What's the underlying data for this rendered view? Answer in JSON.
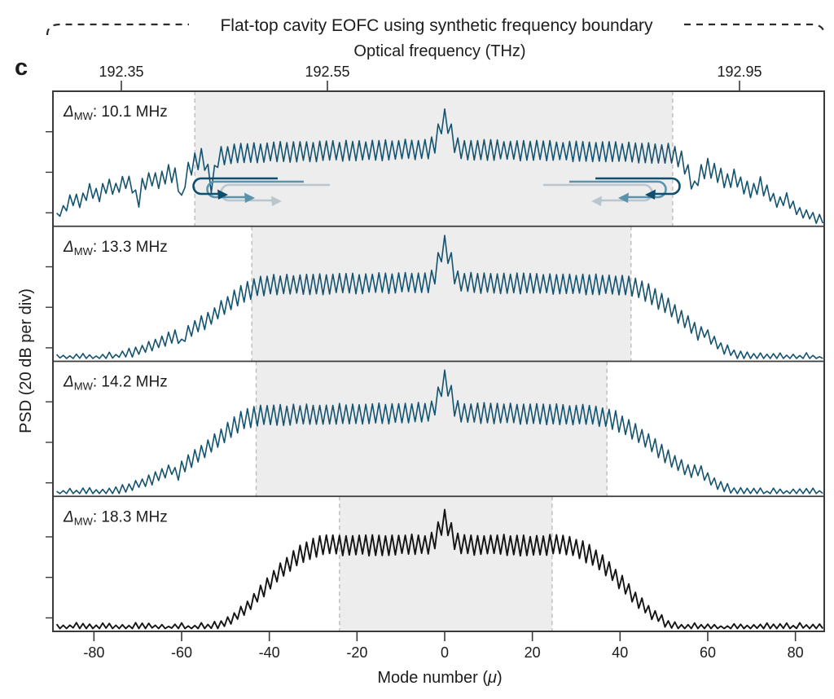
{
  "title": "Flat-top cavity EOFC using synthetic frequency boundary",
  "panel_letter": "c",
  "top_axis": {
    "label": "Optical frequency (THz)",
    "ticks": [
      {
        "label": "192.35",
        "mu": -73.75
      },
      {
        "label": "192.55",
        "mu": -26.75
      },
      {
        "label": "192.95",
        "mu": 67.25
      }
    ]
  },
  "bottom_axis": {
    "label_parts": {
      "prefix": "Mode number (",
      "symbol": "μ",
      "suffix": ")"
    },
    "ticks": [
      -80,
      -60,
      -40,
      -20,
      0,
      20,
      40,
      60,
      80
    ]
  },
  "y_axis": {
    "label": "PSD (20 dB per div)",
    "db_per_division": 20
  },
  "colors": {
    "spectrum_teal": "#14536e",
    "spectrum_black": "#141414",
    "shade": "#ededee",
    "shade_border_dash": "#bcbcbc",
    "frame": "#3a3a3a",
    "arrow_dark": "#0f4e6e",
    "arrow_mid": "#5b93ad",
    "arrow_light": "#b9c6cd"
  },
  "chart_data": {
    "type": "line",
    "x_axis": "Mode number (mu)",
    "x_range": [
      -89,
      87
    ],
    "y_axis": "PSD, 20 dB per division (relative level 0..1 of flat-top)",
    "optical_frequency_ticks_thz": [
      192.35,
      192.55,
      192.95
    ],
    "series": [
      {
        "name": "Delta_MW 10.1 MHz",
        "label": {
          "symbol": "Δ",
          "subscript": "MW",
          "sep": ": ",
          "value": "10.1 MHz"
        },
        "color_key": "spectrum_teal",
        "flat_region_mu": [
          -57,
          52
        ],
        "center_spike_mu": 0,
        "has_circulation_arrows": true,
        "envelope": [
          [
            -89,
            0.08
          ],
          [
            -87,
            0.2
          ],
          [
            -85,
            0.34
          ],
          [
            -83,
            0.3
          ],
          [
            -81,
            0.44
          ],
          [
            -79,
            0.38
          ],
          [
            -77,
            0.52
          ],
          [
            -75,
            0.46
          ],
          [
            -73,
            0.57
          ],
          [
            -71,
            0.5
          ],
          [
            -70,
            0.24
          ],
          [
            -69,
            0.52
          ],
          [
            -67,
            0.6
          ],
          [
            -65,
            0.57
          ],
          [
            -63,
            0.68
          ],
          [
            -61,
            0.62
          ],
          [
            -60,
            0.3
          ],
          [
            -59,
            0.66
          ],
          [
            -57,
            0.8
          ],
          [
            -55,
            0.88
          ],
          [
            -53,
            0.45
          ],
          [
            -52,
            0.86
          ],
          [
            -49,
            0.9
          ],
          [
            -45,
            0.92
          ],
          [
            -38,
            0.93
          ],
          [
            -28,
            0.94
          ],
          [
            -15,
            0.95
          ],
          [
            0,
            0.97
          ],
          [
            15,
            0.95
          ],
          [
            28,
            0.94
          ],
          [
            38,
            0.93
          ],
          [
            46,
            0.92
          ],
          [
            52,
            0.91
          ],
          [
            54,
            0.84
          ],
          [
            56,
            0.6
          ],
          [
            57,
            0.47
          ],
          [
            58,
            0.66
          ],
          [
            60,
            0.74
          ],
          [
            62,
            0.68
          ],
          [
            64,
            0.55
          ],
          [
            66,
            0.62
          ],
          [
            68,
            0.5
          ],
          [
            70,
            0.44
          ],
          [
            72,
            0.52
          ],
          [
            74,
            0.4
          ],
          [
            76,
            0.28
          ],
          [
            78,
            0.34
          ],
          [
            80,
            0.2
          ],
          [
            82,
            0.14
          ],
          [
            84,
            0.09
          ],
          [
            86,
            0.06
          ],
          [
            88,
            0.05
          ]
        ]
      },
      {
        "name": "Delta_MW 13.3 MHz",
        "label": {
          "symbol": "Δ",
          "subscript": "MW",
          "sep": ": ",
          "value": "13.3 MHz"
        },
        "color_key": "spectrum_teal",
        "flat_region_mu": [
          -44,
          42.5
        ],
        "center_spike_mu": 0,
        "has_circulation_arrows": false,
        "envelope": [
          [
            -89,
            0.02
          ],
          [
            -80,
            0.02
          ],
          [
            -77,
            0.03
          ],
          [
            -74,
            0.05
          ],
          [
            -71,
            0.09
          ],
          [
            -68,
            0.15
          ],
          [
            -65,
            0.22
          ],
          [
            -63,
            0.28
          ],
          [
            -61,
            0.33
          ],
          [
            -60,
            0.2
          ],
          [
            -59,
            0.35
          ],
          [
            -57,
            0.42
          ],
          [
            -54,
            0.52
          ],
          [
            -51,
            0.65
          ],
          [
            -48,
            0.78
          ],
          [
            -45,
            0.89
          ],
          [
            -42,
            0.95
          ],
          [
            -38,
            0.96
          ],
          [
            -25,
            0.97
          ],
          [
            -12,
            0.98
          ],
          [
            0,
            0.99
          ],
          [
            12,
            0.98
          ],
          [
            25,
            0.97
          ],
          [
            38,
            0.96
          ],
          [
            42,
            0.95
          ],
          [
            45,
            0.9
          ],
          [
            48,
            0.8
          ],
          [
            51,
            0.68
          ],
          [
            54,
            0.55
          ],
          [
            56,
            0.45
          ],
          [
            58,
            0.33
          ],
          [
            59,
            0.38
          ],
          [
            61,
            0.25
          ],
          [
            63,
            0.16
          ],
          [
            66,
            0.08
          ],
          [
            69,
            0.04
          ],
          [
            72,
            0.02
          ],
          [
            88,
            0.02
          ]
        ]
      },
      {
        "name": "Delta_MW 14.2 MHz",
        "label": {
          "symbol": "Δ",
          "subscript": "MW",
          "sep": ": ",
          "value": "14.2 MHz"
        },
        "color_key": "spectrum_teal",
        "flat_region_mu": [
          -43,
          37
        ],
        "center_spike_mu": 0,
        "has_circulation_arrows": false,
        "envelope": [
          [
            -89,
            0.02
          ],
          [
            -79,
            0.02
          ],
          [
            -76,
            0.04
          ],
          [
            -73,
            0.07
          ],
          [
            -70,
            0.12
          ],
          [
            -67,
            0.18
          ],
          [
            -64,
            0.26
          ],
          [
            -62,
            0.32
          ],
          [
            -61,
            0.2
          ],
          [
            -60,
            0.34
          ],
          [
            -58,
            0.42
          ],
          [
            -55,
            0.53
          ],
          [
            -52,
            0.66
          ],
          [
            -49,
            0.79
          ],
          [
            -46,
            0.9
          ],
          [
            -43,
            0.95
          ],
          [
            -39,
            0.96
          ],
          [
            -25,
            0.97
          ],
          [
            -12,
            0.98
          ],
          [
            0,
            0.99
          ],
          [
            12,
            0.98
          ],
          [
            25,
            0.97
          ],
          [
            33,
            0.96
          ],
          [
            36,
            0.94
          ],
          [
            39,
            0.89
          ],
          [
            42,
            0.81
          ],
          [
            45,
            0.7
          ],
          [
            48,
            0.58
          ],
          [
            51,
            0.46
          ],
          [
            54,
            0.35
          ],
          [
            56,
            0.27
          ],
          [
            58,
            0.32
          ],
          [
            60,
            0.21
          ],
          [
            62,
            0.13
          ],
          [
            65,
            0.07
          ],
          [
            68,
            0.03
          ],
          [
            72,
            0.02
          ],
          [
            88,
            0.02
          ]
        ]
      },
      {
        "name": "Delta_MW 18.3 MHz",
        "label": {
          "symbol": "Δ",
          "subscript": "MW",
          "sep": ": ",
          "value": "18.3 MHz"
        },
        "color_key": "spectrum_black",
        "flat_region_mu": [
          -24,
          24.5
        ],
        "center_spike_mu": 0,
        "has_circulation_arrows": false,
        "envelope": [
          [
            -89,
            0.02
          ],
          [
            -56,
            0.02
          ],
          [
            -53,
            0.03
          ],
          [
            -50,
            0.08
          ],
          [
            -47,
            0.18
          ],
          [
            -44,
            0.32
          ],
          [
            -41,
            0.48
          ],
          [
            -38,
            0.64
          ],
          [
            -35,
            0.78
          ],
          [
            -32,
            0.88
          ],
          [
            -29,
            0.94
          ],
          [
            -26,
            0.96
          ],
          [
            -20,
            0.95
          ],
          [
            -10,
            0.96
          ],
          [
            0,
            0.96
          ],
          [
            10,
            0.96
          ],
          [
            20,
            0.95
          ],
          [
            26,
            0.96
          ],
          [
            29,
            0.94
          ],
          [
            32,
            0.88
          ],
          [
            35,
            0.79
          ],
          [
            38,
            0.66
          ],
          [
            41,
            0.5
          ],
          [
            44,
            0.34
          ],
          [
            47,
            0.19
          ],
          [
            50,
            0.09
          ],
          [
            53,
            0.03
          ],
          [
            56,
            0.02
          ],
          [
            88,
            0.02
          ]
        ]
      }
    ]
  }
}
